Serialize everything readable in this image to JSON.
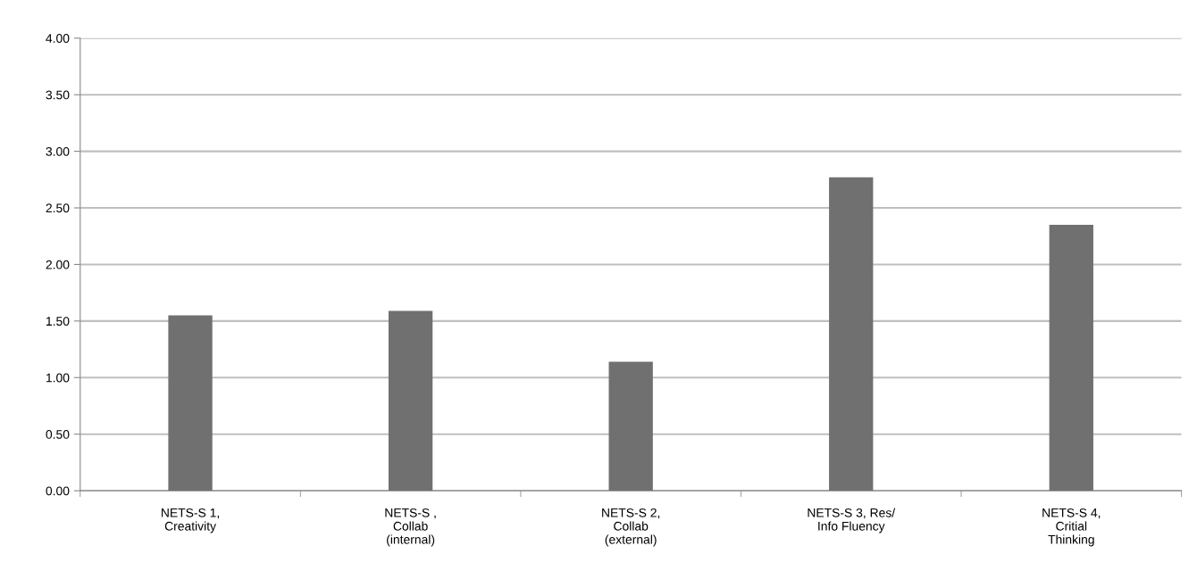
{
  "chart_data": {
    "type": "bar",
    "categories": [
      "NETS-S 1,\nCreativity",
      "NETS-S ,\nCollab\n(internal)",
      "NETS-S 2,\nCollab\n(external)",
      "NETS-S 3, Res/\nInfo Fluency",
      "NETS-S 4,\nCritial\nThinking"
    ],
    "values": [
      1.55,
      1.59,
      1.14,
      2.77,
      2.35
    ],
    "color": "#707070",
    "ylim": [
      0,
      4
    ],
    "yticks": [
      {
        "value": 0,
        "label": "0.00"
      },
      {
        "value": 0.5,
        "label": "0.50"
      },
      {
        "value": 1,
        "label": "1.00"
      },
      {
        "value": 1.5,
        "label": "1.50"
      },
      {
        "value": 2,
        "label": "2.00"
      },
      {
        "value": 2.5,
        "label": "2.50"
      },
      {
        "value": 3,
        "label": "3.00"
      },
      {
        "value": 3.5,
        "label": "3.50"
      },
      {
        "value": 4,
        "label": "4.00"
      }
    ],
    "grid": "y"
  }
}
